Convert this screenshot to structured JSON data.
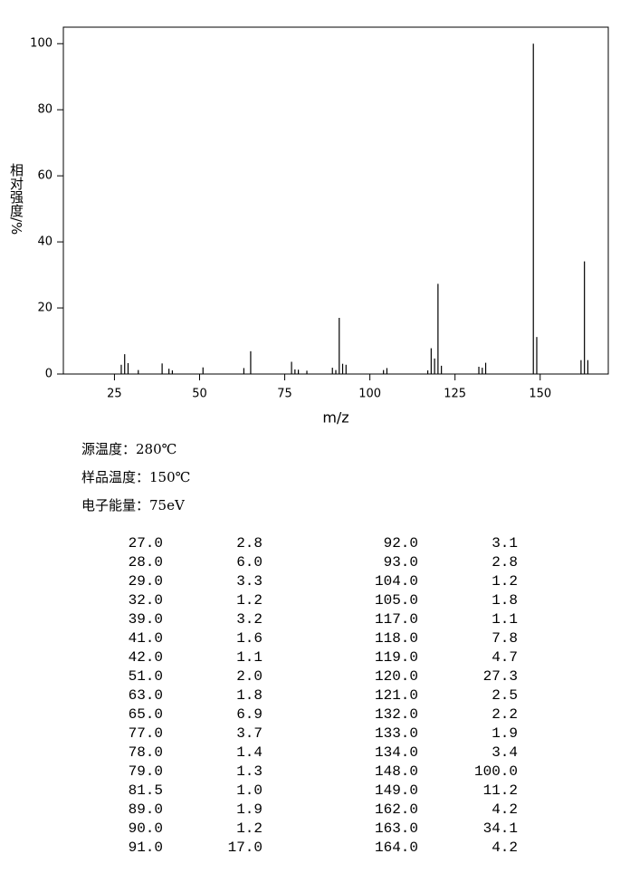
{
  "chart_data": {
    "type": "stem",
    "x_label": "m/z",
    "y_label": "相对强度/%",
    "x": [
      27,
      28,
      29,
      32,
      39,
      41,
      42,
      51,
      63,
      65,
      77,
      78,
      79,
      81.5,
      89,
      90,
      91,
      92,
      93,
      104,
      105,
      117,
      118,
      119,
      120,
      121,
      132,
      133,
      134,
      148,
      149,
      162,
      163,
      164
    ],
    "values": [
      2.8,
      6.0,
      3.3,
      1.2,
      3.2,
      1.6,
      1.1,
      2.0,
      1.8,
      6.9,
      3.7,
      1.4,
      1.3,
      1.0,
      1.9,
      1.2,
      17.0,
      3.1,
      2.8,
      1.2,
      1.8,
      1.1,
      7.8,
      4.7,
      27.3,
      2.5,
      2.2,
      1.9,
      3.4,
      100.0,
      11.2,
      4.2,
      34.1,
      4.2
    ],
    "color": "#000000",
    "xlim": [
      10,
      170
    ],
    "xticks": [
      25,
      50,
      75,
      100,
      125,
      150
    ],
    "ylim": [
      0,
      105
    ],
    "yticks": [
      0,
      20,
      40,
      60,
      80,
      100
    ]
  },
  "conditions": [
    "源温度：280℃",
    "样品温度：150℃",
    "电子能量：75eV"
  ],
  "table": {
    "rows": [
      [
        "27.0",
        "2.8"
      ],
      [
        "28.0",
        "6.0"
      ],
      [
        "29.0",
        "3.3"
      ],
      [
        "32.0",
        "1.2"
      ],
      [
        "39.0",
        "3.2"
      ],
      [
        "41.0",
        "1.6"
      ],
      [
        "42.0",
        "1.1"
      ],
      [
        "51.0",
        "2.0"
      ],
      [
        "63.0",
        "1.8"
      ],
      [
        "65.0",
        "6.9"
      ],
      [
        "77.0",
        "3.7"
      ],
      [
        "78.0",
        "1.4"
      ],
      [
        "79.0",
        "1.3"
      ],
      [
        "81.5",
        "1.0"
      ],
      [
        "89.0",
        "1.9"
      ],
      [
        "90.0",
        "1.2"
      ],
      [
        "91.0",
        "17.0"
      ],
      [
        "92.0",
        "3.1"
      ],
      [
        "93.0",
        "2.8"
      ],
      [
        "104.0",
        "1.2"
      ],
      [
        "105.0",
        "1.8"
      ],
      [
        "117.0",
        "1.1"
      ],
      [
        "118.0",
        "7.8"
      ],
      [
        "119.0",
        "4.7"
      ],
      [
        "120.0",
        "27.3"
      ],
      [
        "121.0",
        "2.5"
      ],
      [
        "132.0",
        "2.2"
      ],
      [
        "133.0",
        "1.9"
      ],
      [
        "134.0",
        "3.4"
      ],
      [
        "148.0",
        "100.0"
      ],
      [
        "149.0",
        "11.2"
      ],
      [
        "162.0",
        "4.2"
      ],
      [
        "163.0",
        "34.1"
      ],
      [
        "164.0",
        "4.2"
      ]
    ]
  }
}
